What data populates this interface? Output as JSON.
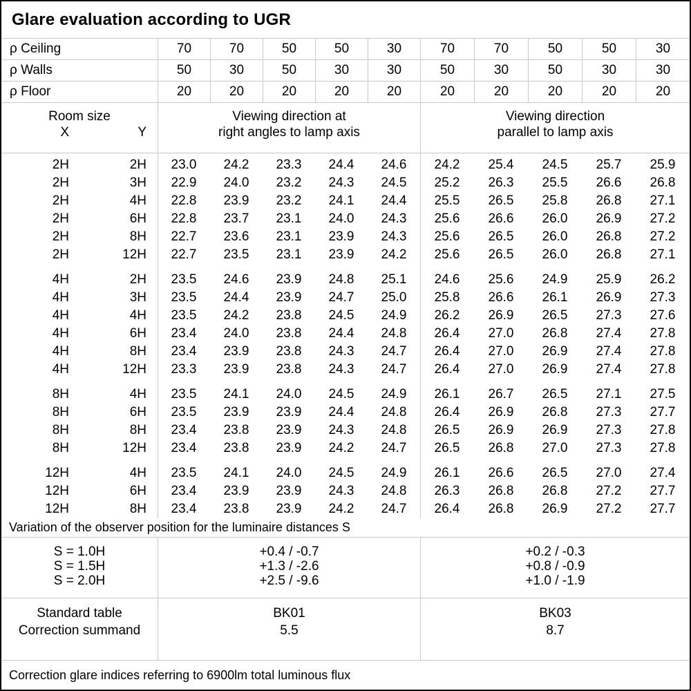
{
  "title": "Glare evaluation according to UGR",
  "reflectance_rows": [
    {
      "label": "ρ Ceiling",
      "values": [
        70,
        70,
        50,
        50,
        30,
        70,
        70,
        50,
        50,
        30
      ]
    },
    {
      "label": "ρ Walls",
      "values": [
        50,
        30,
        50,
        30,
        30,
        50,
        30,
        50,
        30,
        30
      ]
    },
    {
      "label": "ρ Floor",
      "values": [
        20,
        20,
        20,
        20,
        20,
        20,
        20,
        20,
        20,
        20
      ]
    }
  ],
  "header": {
    "room_size": "Room size",
    "x_label": "X",
    "y_label": "Y",
    "perpendicular_line1": "Viewing direction at",
    "perpendicular_line2": "right angles to lamp axis",
    "parallel_line1": "Viewing direction",
    "parallel_line2": "parallel to lamp axis"
  },
  "ugr_table": {
    "blocks": [
      {
        "rows": [
          {
            "x": "2H",
            "y": "2H",
            "values": [
              "23.0",
              "24.2",
              "23.3",
              "24.4",
              "24.6",
              "24.2",
              "25.4",
              "24.5",
              "25.7",
              "25.9"
            ]
          },
          {
            "x": "2H",
            "y": "3H",
            "values": [
              "22.9",
              "24.0",
              "23.2",
              "24.3",
              "24.5",
              "25.2",
              "26.3",
              "25.5",
              "26.6",
              "26.8"
            ]
          },
          {
            "x": "2H",
            "y": "4H",
            "values": [
              "22.8",
              "23.9",
              "23.2",
              "24.1",
              "24.4",
              "25.5",
              "26.5",
              "25.8",
              "26.8",
              "27.1"
            ]
          },
          {
            "x": "2H",
            "y": "6H",
            "values": [
              "22.8",
              "23.7",
              "23.1",
              "24.0",
              "24.3",
              "25.6",
              "26.6",
              "26.0",
              "26.9",
              "27.2"
            ]
          },
          {
            "x": "2H",
            "y": "8H",
            "values": [
              "22.7",
              "23.6",
              "23.1",
              "23.9",
              "24.3",
              "25.6",
              "26.5",
              "26.0",
              "26.8",
              "27.2"
            ]
          },
          {
            "x": "2H",
            "y": "12H",
            "values": [
              "22.7",
              "23.5",
              "23.1",
              "23.9",
              "24.2",
              "25.6",
              "26.5",
              "26.0",
              "26.8",
              "27.1"
            ]
          }
        ]
      },
      {
        "rows": [
          {
            "x": "4H",
            "y": "2H",
            "values": [
              "23.5",
              "24.6",
              "23.9",
              "24.8",
              "25.1",
              "24.6",
              "25.6",
              "24.9",
              "25.9",
              "26.2"
            ]
          },
          {
            "x": "4H",
            "y": "3H",
            "values": [
              "23.5",
              "24.4",
              "23.9",
              "24.7",
              "25.0",
              "25.8",
              "26.6",
              "26.1",
              "26.9",
              "27.3"
            ]
          },
          {
            "x": "4H",
            "y": "4H",
            "values": [
              "23.5",
              "24.2",
              "23.8",
              "24.5",
              "24.9",
              "26.2",
              "26.9",
              "26.5",
              "27.3",
              "27.6"
            ]
          },
          {
            "x": "4H",
            "y": "6H",
            "values": [
              "23.4",
              "24.0",
              "23.8",
              "24.4",
              "24.8",
              "26.4",
              "27.0",
              "26.8",
              "27.4",
              "27.8"
            ]
          },
          {
            "x": "4H",
            "y": "8H",
            "values": [
              "23.4",
              "23.9",
              "23.8",
              "24.3",
              "24.7",
              "26.4",
              "27.0",
              "26.9",
              "27.4",
              "27.8"
            ]
          },
          {
            "x": "4H",
            "y": "12H",
            "values": [
              "23.3",
              "23.9",
              "23.8",
              "24.3",
              "24.7",
              "26.4",
              "27.0",
              "26.9",
              "27.4",
              "27.8"
            ]
          }
        ]
      },
      {
        "rows": [
          {
            "x": "8H",
            "y": "4H",
            "values": [
              "23.5",
              "24.1",
              "24.0",
              "24.5",
              "24.9",
              "26.1",
              "26.7",
              "26.5",
              "27.1",
              "27.5"
            ]
          },
          {
            "x": "8H",
            "y": "6H",
            "values": [
              "23.5",
              "23.9",
              "23.9",
              "24.4",
              "24.8",
              "26.4",
              "26.9",
              "26.8",
              "27.3",
              "27.7"
            ]
          },
          {
            "x": "8H",
            "y": "8H",
            "values": [
              "23.4",
              "23.8",
              "23.9",
              "24.3",
              "24.8",
              "26.5",
              "26.9",
              "26.9",
              "27.3",
              "27.8"
            ]
          },
          {
            "x": "8H",
            "y": "12H",
            "values": [
              "23.4",
              "23.8",
              "23.9",
              "24.2",
              "24.7",
              "26.5",
              "26.8",
              "27.0",
              "27.3",
              "27.8"
            ]
          }
        ]
      },
      {
        "rows": [
          {
            "x": "12H",
            "y": "4H",
            "values": [
              "23.5",
              "24.1",
              "24.0",
              "24.5",
              "24.9",
              "26.1",
              "26.6",
              "26.5",
              "27.0",
              "27.4"
            ]
          },
          {
            "x": "12H",
            "y": "6H",
            "values": [
              "23.4",
              "23.9",
              "23.9",
              "24.3",
              "24.8",
              "26.3",
              "26.8",
              "26.8",
              "27.2",
              "27.7"
            ]
          },
          {
            "x": "12H",
            "y": "8H",
            "values": [
              "23.4",
              "23.8",
              "23.9",
              "24.2",
              "24.7",
              "26.4",
              "26.8",
              "26.9",
              "27.2",
              "27.7"
            ]
          }
        ]
      }
    ]
  },
  "variation_note": "Variation of the observer position for the luminaire distances S",
  "s_variation": {
    "rows": [
      {
        "label": "S = 1.0H",
        "perpendicular": "+0.4 / -0.7",
        "parallel": "+0.2 / -0.3"
      },
      {
        "label": "S = 1.5H",
        "perpendicular": "+1.3 / -2.6",
        "parallel": "+0.8 / -0.9"
      },
      {
        "label": "S = 2.0H",
        "perpendicular": "+2.5 / -9.6",
        "parallel": "+1.0 / -1.9"
      }
    ]
  },
  "standard": {
    "table_label": "Standard table",
    "summand_label": "Correction summand",
    "table_perpendicular": "BK01",
    "table_parallel": "BK03",
    "summand_perpendicular": "5.5",
    "summand_parallel": "8.7"
  },
  "footer_note": "Correction glare indices referring to 6900lm total luminous flux"
}
